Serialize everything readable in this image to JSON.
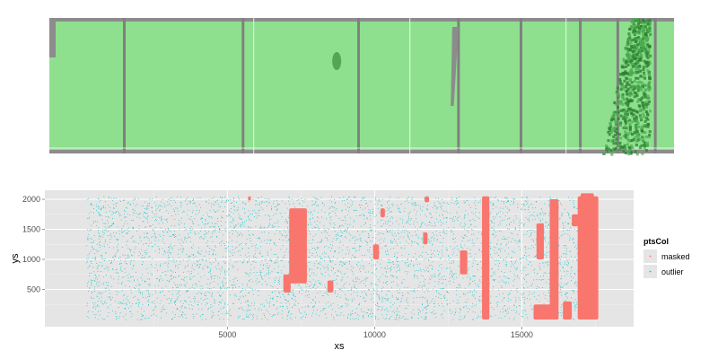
{
  "chart_data": [
    {
      "type": "heatmap",
      "description_colors": {
        "background": "#8c8c8c",
        "fill_light": "#8ee08e",
        "fill_dark": "#2e7d32",
        "divider": "#808080"
      },
      "dark_spot_near_x": [
        8000
      ],
      "dark_region_x_range": [
        16500,
        18000
      ]
    },
    {
      "type": "scatter",
      "xlabel": "xs",
      "ylabel": "ys",
      "xlim": [
        -1200,
        18800
      ],
      "ylim": [
        -120,
        2150
      ],
      "x_ticks": [
        5000,
        10000,
        15000
      ],
      "x_tick_labels": [
        "5000",
        "10000",
        "15000"
      ],
      "y_ticks": [
        500,
        1000,
        1500,
        2000
      ],
      "y_tick_labels": [
        "500",
        "1000",
        "1500",
        "2000"
      ],
      "grid": true,
      "legend": {
        "title": "ptsCol",
        "placement": "right",
        "items": [
          {
            "label": "masked",
            "color": "#f8766d"
          },
          {
            "label": "outlier",
            "color": "#00bfc4"
          }
        ]
      },
      "series": [
        {
          "name": "outlier",
          "color": "#00bfc4",
          "x_range": [
            200,
            17500
          ],
          "y_range": [
            0,
            2050
          ],
          "approx_points": 5000
        },
        {
          "name": "masked",
          "color": "#f8766d",
          "regions": [
            {
              "x": [
                7100,
                7700
              ],
              "y": [
                600,
                1850
              ]
            },
            {
              "x": [
                6900,
                7150
              ],
              "y": [
                450,
                750
              ]
            },
            {
              "x": [
                8400,
                8600
              ],
              "y": [
                450,
                650
              ]
            },
            {
              "x": [
                9950,
                10150
              ],
              "y": [
                1000,
                1250
              ]
            },
            {
              "x": [
                10200,
                10350
              ],
              "y": [
                1700,
                1850
              ]
            },
            {
              "x": [
                11650,
                11800
              ],
              "y": [
                1250,
                1450
              ]
            },
            {
              "x": [
                11700,
                11850
              ],
              "y": [
                1950,
                2050
              ]
            },
            {
              "x": [
                12900,
                13150
              ],
              "y": [
                750,
                1150
              ]
            },
            {
              "x": [
                13650,
                13900
              ],
              "y": [
                0,
                2050
              ]
            },
            {
              "x": [
                15400,
                16000
              ],
              "y": [
                0,
                250
              ]
            },
            {
              "x": [
                15500,
                15750
              ],
              "y": [
                1000,
                1600
              ]
            },
            {
              "x": [
                15950,
                16250
              ],
              "y": [
                0,
                2000
              ]
            },
            {
              "x": [
                16400,
                16700
              ],
              "y": [
                0,
                300
              ]
            },
            {
              "x": [
                16700,
                16950
              ],
              "y": [
                1550,
                1750
              ]
            },
            {
              "x": [
                16900,
                17600
              ],
              "y": [
                0,
                2050
              ]
            },
            {
              "x": [
                17000,
                17450
              ],
              "y": [
                1850,
                2100
              ]
            },
            {
              "x": [
                5700,
                5800
              ],
              "y": [
                1980,
                2050
              ]
            }
          ]
        }
      ]
    }
  ]
}
